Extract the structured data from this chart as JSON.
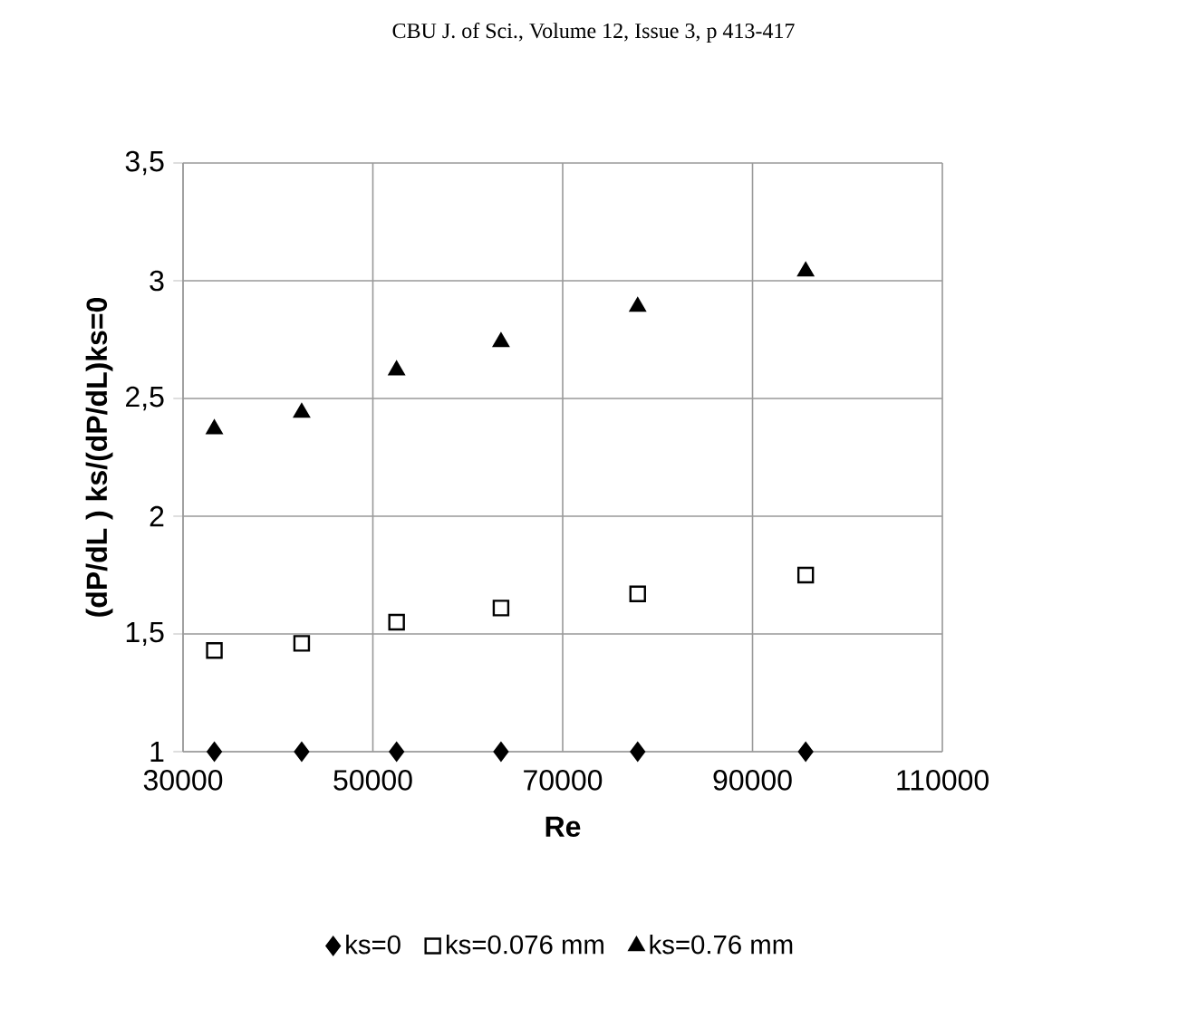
{
  "chart_data": {
    "type": "scatter",
    "annotations": [
      "CBU J. of Sci., Volume 12, Issue 3, p 413-417"
    ],
    "xlabel": "Re",
    "ylabel": "(dP/dL ) ks/(dP/dL)ks=0",
    "x": [
      33300,
      42500,
      52500,
      63500,
      77900,
      95600
    ],
    "series": [
      {
        "name": "ks=0",
        "color": "#000000",
        "marker": "diamond",
        "values": [
          1,
          1,
          1,
          1,
          1,
          1
        ]
      },
      {
        "name": "ks=0.076 mm",
        "color": "#000000",
        "marker": "square",
        "values": [
          1.43,
          1.46,
          1.55,
          1.61,
          1.67,
          1.75
        ]
      },
      {
        "name": "ks=0.76 mm",
        "color": "#000000",
        "marker": "triangle",
        "values": [
          2.37,
          2.44,
          2.62,
          2.74,
          2.89,
          3.04
        ]
      }
    ],
    "xlim": [
      30000,
      110000
    ],
    "xticks": [
      30000,
      50000,
      70000,
      90000,
      110000
    ],
    "ylim": [
      1,
      3.5
    ],
    "yticks": [
      1,
      {
        "value": 1.5,
        "label": "1,5"
      },
      2,
      {
        "value": 2.5,
        "label": "2,5"
      },
      3,
      {
        "value": 3.5,
        "label": "3,5"
      }
    ],
    "grid": true,
    "legend": "bottom"
  }
}
